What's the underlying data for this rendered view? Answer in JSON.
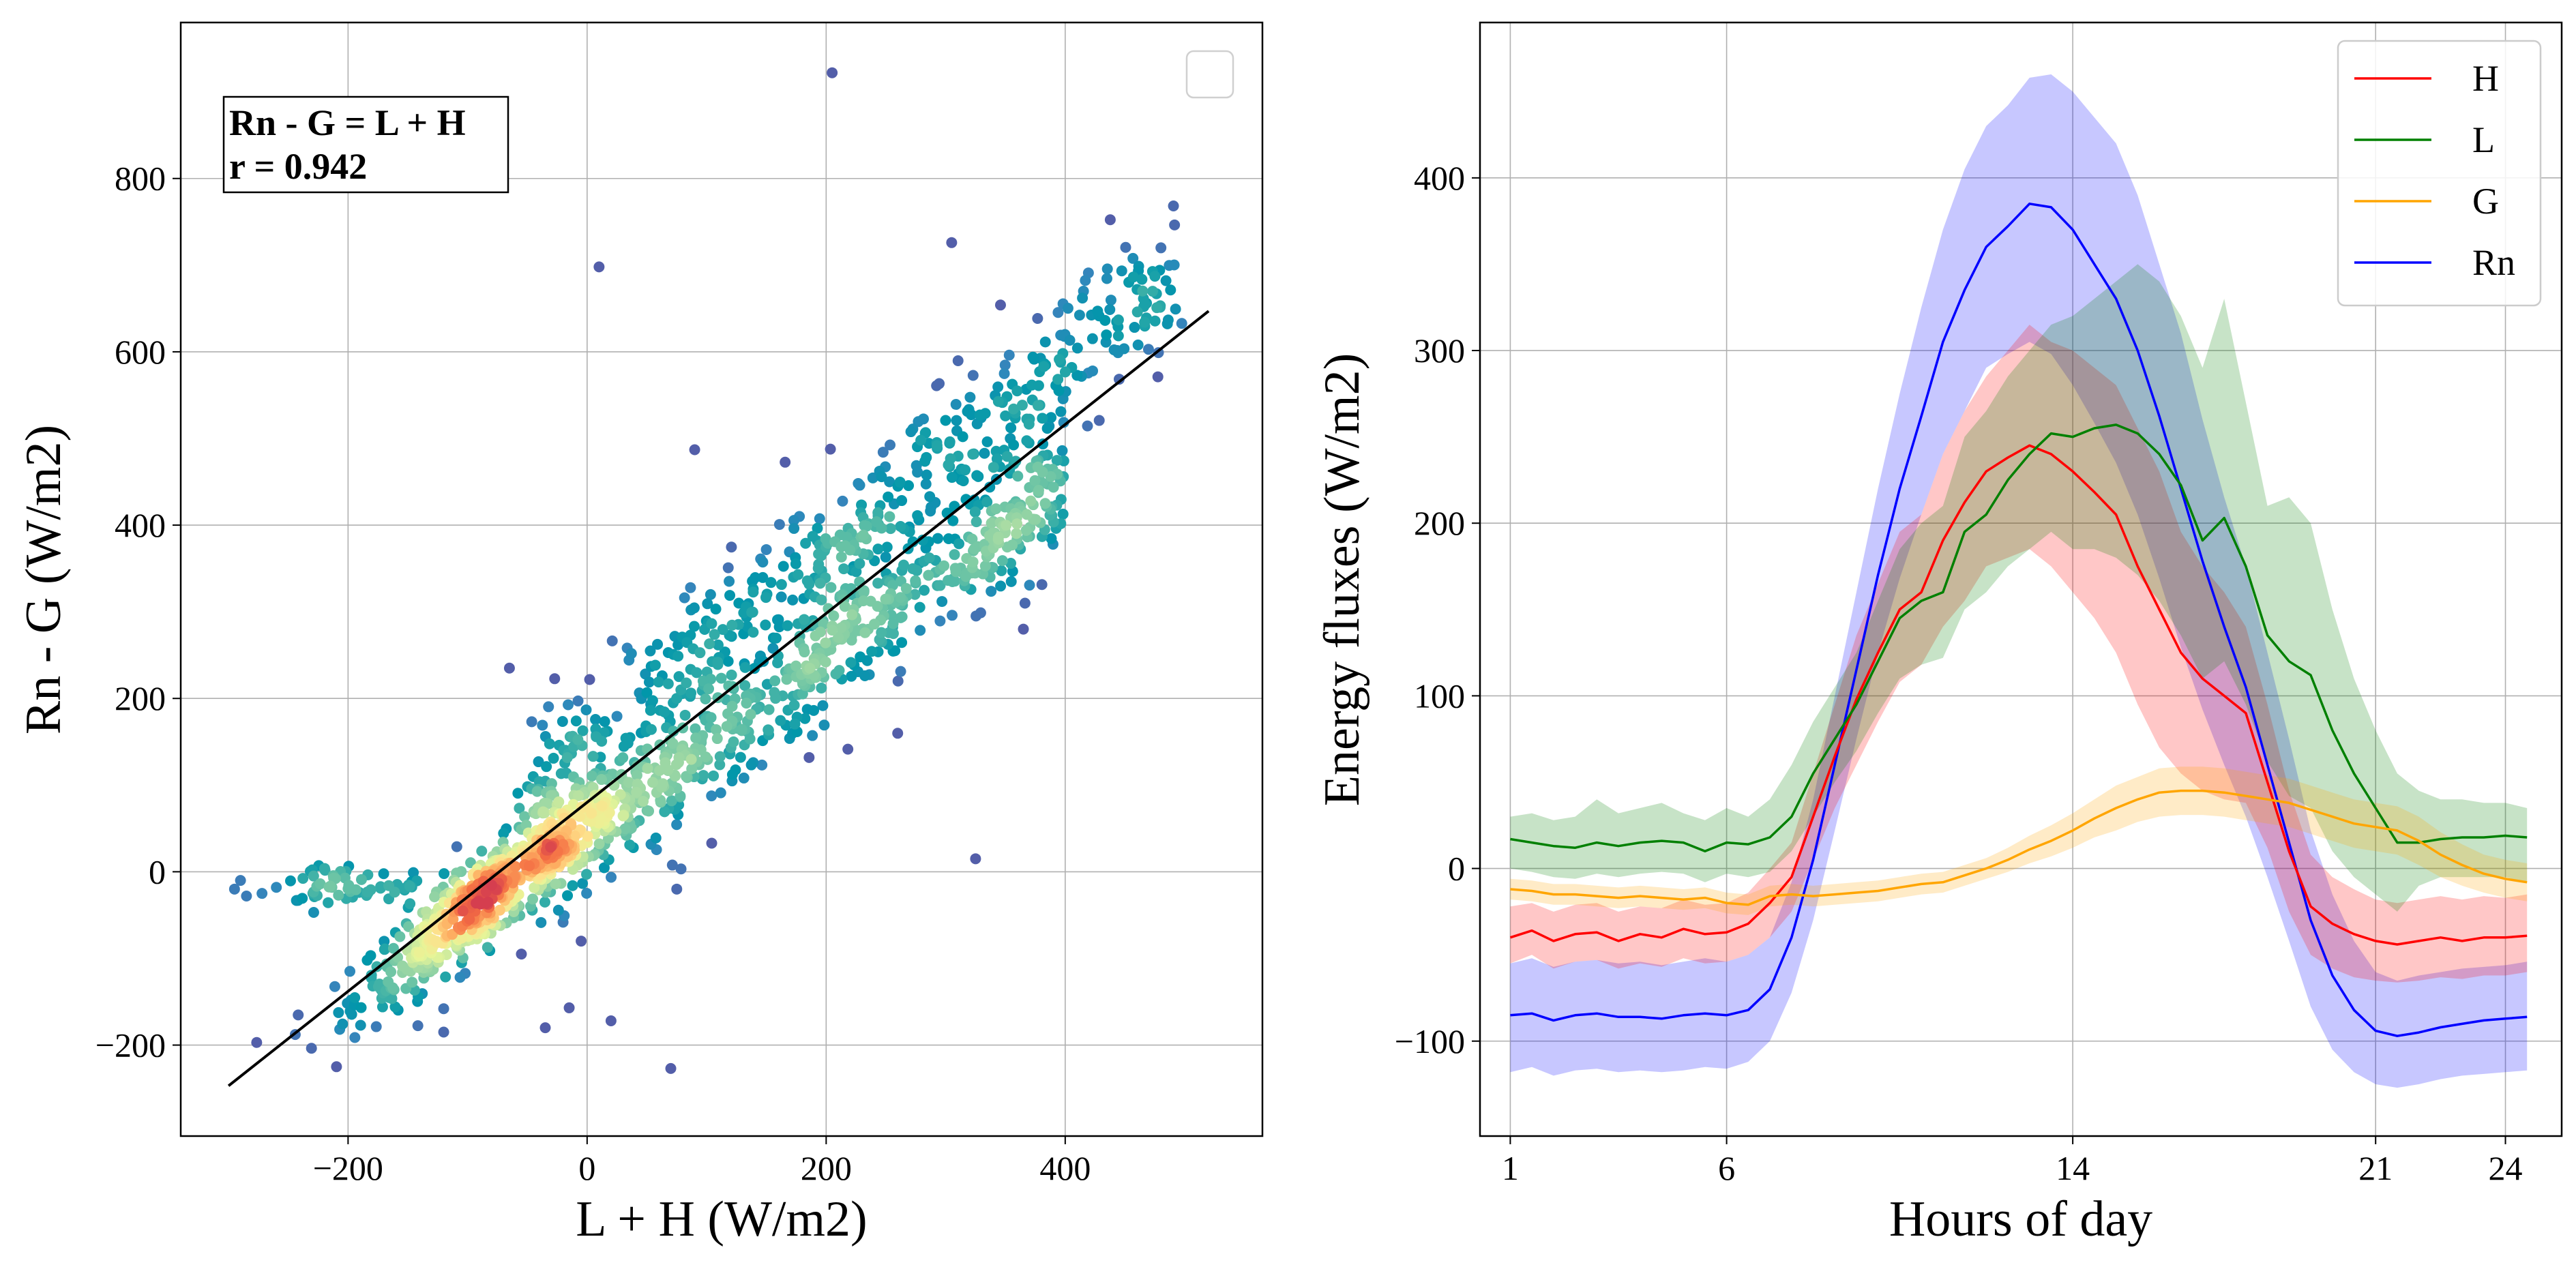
{
  "colors": {
    "H": "#ff0000",
    "L": "#008000",
    "G": "#ffa500",
    "Rn": "#0000ff",
    "grid": "#b0b0b0",
    "fit_line": "#000000",
    "scatter_sparse": "#5e4fa2",
    "scatter_dense": "#e0303f"
  },
  "chart_data": [
    {
      "type": "scatter",
      "title": "",
      "xlabel": "L + H (W/m2)",
      "ylabel": "Rn - G (W/m2)",
      "xlim": [
        -340,
        565
      ],
      "ylim": [
        -305,
        980
      ],
      "xticks": [
        -200,
        0,
        200,
        400
      ],
      "xtick_labels": [
        "−200",
        "0",
        "200",
        "400"
      ],
      "yticks": [
        -200,
        0,
        200,
        400,
        600,
        800
      ],
      "ytick_labels": [
        "−200",
        "0",
        "200",
        "400",
        "600",
        "800"
      ],
      "grid": true,
      "annotation": [
        "Rn - G = L + H",
        "r = 0.942"
      ],
      "legend": "empty box, top-right",
      "fit_line": {
        "x": [
          -300,
          520
        ],
        "y": [
          -247,
          647
        ]
      },
      "colormap": "Spectral_r (point density)",
      "trend": "dense cloud along y = 1.05x + 80, densest near (-80, -20)",
      "outliers": [
        [
          -295,
          -20
        ],
        [
          -285,
          -28
        ],
        [
          -272,
          -25
        ],
        [
          -260,
          -18
        ],
        [
          -290,
          -10
        ],
        [
          205,
          922
        ],
        [
          10,
          698
        ],
        [
          305,
          726
        ],
        [
          90,
          487
        ],
        [
          -65,
          235
        ],
        [
          -120,
          -185
        ],
        [
          -120,
          -158
        ],
        [
          -105,
          -105
        ],
        [
          -55,
          -95
        ],
        [
          -35,
          -180
        ],
        [
          -15,
          -157
        ],
        [
          20,
          -172
        ],
        [
          70,
          -227
        ],
        [
          75,
          -20
        ],
        [
          325,
          15
        ],
        [
          365,
          280
        ],
        [
          15,
          80
        ],
        [
          -5,
          -80
        ]
      ]
    },
    {
      "type": "line",
      "title": "",
      "xlabel": "Hours of day",
      "ylabel": "Energy fluxes (W/m2)",
      "xlim": [
        0.3,
        25.3
      ],
      "ylim": [
        -155,
        490
      ],
      "xticks": [
        1,
        6,
        14,
        21,
        24
      ],
      "xtick_labels": [
        "1",
        "6",
        "14",
        "21",
        "24"
      ],
      "yticks": [
        -100,
        0,
        100,
        200,
        300,
        400
      ],
      "ytick_labels": [
        "−100",
        "0",
        "100",
        "200",
        "300",
        "400"
      ],
      "grid": true,
      "legend_position": "top-right",
      "x": [
        1,
        1.5,
        2,
        2.5,
        3,
        3.5,
        4,
        4.5,
        5,
        5.5,
        6,
        6.5,
        7,
        7.5,
        8,
        8.5,
        9,
        9.5,
        10,
        10.5,
        11,
        11.5,
        12,
        12.5,
        13,
        13.5,
        14,
        14.5,
        15,
        15.5,
        16,
        16.5,
        17,
        17.5,
        18,
        18.5,
        19,
        19.5,
        20,
        20.5,
        21,
        21.5,
        22,
        22.5,
        23,
        23.5,
        24,
        24.5
      ],
      "series": [
        {
          "name": "H",
          "values": [
            -40,
            -36,
            -42,
            -38,
            -37,
            -42,
            -38,
            -40,
            -35,
            -38,
            -37,
            -32,
            -20,
            -5,
            30,
            65,
            98,
            125,
            150,
            160,
            190,
            212,
            230,
            238,
            245,
            240,
            230,
            218,
            205,
            175,
            150,
            125,
            110,
            100,
            90,
            50,
            10,
            -22,
            -32,
            -38,
            -42,
            -44,
            -42,
            -40,
            -42,
            -40,
            -40,
            -39
          ],
          "lower": [
            -55,
            -50,
            -58,
            -54,
            -53,
            -58,
            -55,
            -57,
            -52,
            -55,
            -54,
            -50,
            -40,
            -25,
            5,
            35,
            60,
            85,
            108,
            118,
            140,
            155,
            175,
            180,
            185,
            175,
            160,
            145,
            125,
            95,
            70,
            55,
            45,
            40,
            38,
            12,
            -25,
            -50,
            -58,
            -63,
            -65,
            -66,
            -65,
            -63,
            -64,
            -62,
            -62,
            -60
          ],
          "upper": [
            -22,
            -20,
            -25,
            -21,
            -20,
            -25,
            -22,
            -23,
            -18,
            -21,
            -20,
            -14,
            0,
            15,
            55,
            95,
            135,
            165,
            195,
            205,
            240,
            265,
            285,
            300,
            315,
            305,
            300,
            290,
            280,
            255,
            230,
            195,
            175,
            160,
            140,
            95,
            45,
            8,
            -5,
            -12,
            -18,
            -20,
            -18,
            -16,
            -18,
            -16,
            -17,
            -15
          ]
        },
        {
          "name": "L",
          "values": [
            17,
            15,
            13,
            12,
            15,
            13,
            15,
            16,
            15,
            10,
            15,
            14,
            18,
            30,
            55,
            75,
            95,
            120,
            145,
            155,
            160,
            195,
            205,
            225,
            240,
            252,
            250,
            255,
            257,
            252,
            240,
            222,
            190,
            203,
            175,
            135,
            120,
            112,
            80,
            55,
            35,
            15,
            15,
            17,
            18,
            18,
            19,
            18
          ],
          "lower": [
            0,
            -2,
            -5,
            -6,
            -3,
            -5,
            -3,
            -2,
            -3,
            -8,
            -3,
            -5,
            -2,
            10,
            30,
            50,
            68,
            90,
            110,
            118,
            122,
            150,
            160,
            175,
            185,
            195,
            185,
            185,
            180,
            170,
            155,
            135,
            110,
            120,
            95,
            62,
            42,
            35,
            10,
            -5,
            -15,
            -25,
            -10,
            -5,
            -5,
            -5,
            -5,
            -8
          ],
          "upper": [
            30,
            32,
            28,
            30,
            40,
            32,
            35,
            38,
            32,
            28,
            35,
            30,
            40,
            60,
            85,
            105,
            125,
            155,
            185,
            200,
            210,
            250,
            265,
            285,
            300,
            315,
            320,
            330,
            340,
            350,
            340,
            320,
            290,
            330,
            270,
            210,
            215,
            200,
            150,
            110,
            80,
            55,
            45,
            40,
            40,
            38,
            38,
            35
          ]
        },
        {
          "name": "G",
          "values": [
            -12,
            -13,
            -15,
            -15,
            -16,
            -17,
            -16,
            -17,
            -18,
            -17,
            -20,
            -21,
            -16,
            -15,
            -16,
            -15,
            -14,
            -13,
            -11,
            -9,
            -8,
            -4,
            0,
            5,
            11,
            16,
            22,
            29,
            35,
            40,
            44,
            45,
            45,
            44,
            42,
            40,
            38,
            34,
            30,
            26,
            24,
            22,
            16,
            8,
            2,
            -3,
            -6,
            -8
          ],
          "lower": [
            -18,
            -19,
            -21,
            -21,
            -22,
            -23,
            -22,
            -23,
            -24,
            -23,
            -26,
            -27,
            -22,
            -21,
            -22,
            -21,
            -20,
            -19,
            -17,
            -15,
            -14,
            -10,
            -6,
            -2,
            3,
            7,
            12,
            18,
            22,
            27,
            30,
            31,
            31,
            30,
            28,
            26,
            24,
            20,
            16,
            12,
            10,
            8,
            2,
            -5,
            -10,
            -14,
            -17,
            -19
          ],
          "upper": [
            -6,
            -7,
            -9,
            -9,
            -10,
            -11,
            -10,
            -11,
            -12,
            -11,
            -14,
            -15,
            -10,
            -9,
            -10,
            -9,
            -8,
            -7,
            -5,
            -3,
            -2,
            2,
            6,
            12,
            19,
            25,
            32,
            40,
            48,
            53,
            58,
            59,
            59,
            58,
            56,
            54,
            52,
            48,
            44,
            40,
            38,
            36,
            30,
            21,
            14,
            8,
            5,
            3
          ]
        },
        {
          "name": "Rn",
          "values": [
            -85,
            -84,
            -88,
            -85,
            -84,
            -86,
            -86,
            -87,
            -85,
            -84,
            -85,
            -82,
            -70,
            -40,
            5,
            60,
            115,
            170,
            220,
            262,
            305,
            335,
            360,
            372,
            385,
            383,
            370,
            350,
            330,
            300,
            262,
            220,
            178,
            140,
            105,
            60,
            15,
            -30,
            -62,
            -82,
            -94,
            -97,
            -95,
            -92,
            -90,
            -88,
            -87,
            -86
          ],
          "lower": [
            -118,
            -115,
            -120,
            -117,
            -116,
            -118,
            -117,
            -118,
            -117,
            -115,
            -116,
            -112,
            -100,
            -72,
            -30,
            22,
            75,
            125,
            168,
            205,
            240,
            265,
            290,
            298,
            305,
            298,
            280,
            258,
            235,
            205,
            168,
            128,
            92,
            60,
            30,
            -5,
            -42,
            -80,
            -105,
            -118,
            -125,
            -127,
            -125,
            -122,
            -120,
            -119,
            -118,
            -117
          ],
          "upper": [
            -55,
            -52,
            -57,
            -54,
            -53,
            -55,
            -54,
            -56,
            -54,
            -52,
            -54,
            -50,
            -40,
            -8,
            40,
            100,
            160,
            220,
            275,
            325,
            370,
            405,
            430,
            442,
            458,
            460,
            450,
            435,
            420,
            390,
            350,
            310,
            260,
            215,
            175,
            125,
            75,
            22,
            -15,
            -42,
            -60,
            -65,
            -62,
            -60,
            -58,
            -57,
            -56,
            -54
          ]
        }
      ]
    }
  ]
}
